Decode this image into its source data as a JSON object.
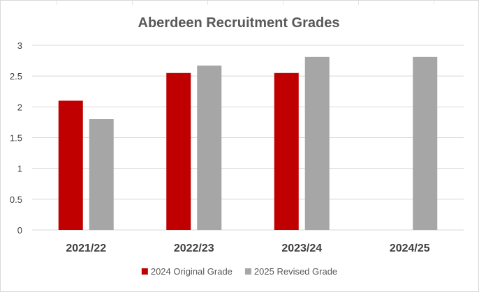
{
  "chart_data": {
    "type": "bar",
    "title": "Aberdeen Recruitment Grades",
    "xlabel": "",
    "ylabel": "",
    "categories": [
      "2021/22",
      "2022/23",
      "2023/24",
      "2024/25"
    ],
    "series": [
      {
        "name": "2024 Original Grade",
        "color": "#c00000",
        "values": [
          2.1,
          2.55,
          2.55,
          null
        ]
      },
      {
        "name": "2025 Revised Grade",
        "color": "#a6a6a6",
        "values": [
          1.8,
          2.67,
          2.81,
          2.81
        ]
      }
    ],
    "ylim": [
      0,
      3
    ],
    "yticks": [
      "0",
      "0.5",
      "1",
      "1.5",
      "2",
      "2.5",
      "3"
    ],
    "ytick_values": [
      0,
      0.5,
      1,
      1.5,
      2,
      2.5,
      3
    ],
    "grid": true,
    "gridline_color": "#d9d9d9",
    "legend_position": "bottom"
  }
}
